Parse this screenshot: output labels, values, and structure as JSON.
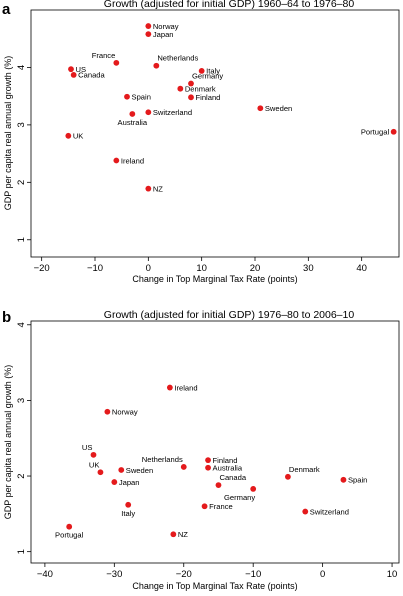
{
  "chart_data": [
    {
      "panel_letter": "a",
      "type": "scatter",
      "title": "Growth (adjusted for initial GDP) 1960–64 to 1976–80",
      "xlabel": "Change in Top Marginal Tax Rate (points)",
      "ylabel": "GDP per capita real annual growth (%)",
      "xlim": [
        -22,
        47
      ],
      "ylim": [
        0.7,
        5.0
      ],
      "xticks": [
        "−20",
        "−10",
        "0",
        "10",
        "20",
        "30",
        "40"
      ],
      "xtick_values": [
        -20,
        -10,
        0,
        10,
        20,
        30,
        40
      ],
      "yticks": [
        "1",
        "2",
        "3",
        "4"
      ],
      "ytick_values": [
        1,
        2,
        3,
        4
      ],
      "marker_color": "#e41a1c",
      "points": [
        {
          "label": "Norway",
          "x": 0,
          "y": 4.72,
          "lpos": "right"
        },
        {
          "label": "Japan",
          "x": 0,
          "y": 4.58,
          "lpos": "right"
        },
        {
          "label": "France",
          "x": -6,
          "y": 4.08,
          "lpos": "above-left"
        },
        {
          "label": "Netherlands",
          "x": 1.5,
          "y": 4.03,
          "lpos": "above-right"
        },
        {
          "label": "US",
          "x": -14.5,
          "y": 3.97,
          "lpos": "right"
        },
        {
          "label": "Canada",
          "x": -14,
          "y": 3.87,
          "lpos": "right"
        },
        {
          "label": "Italy",
          "x": 10,
          "y": 3.94,
          "lpos": "right"
        },
        {
          "label": "Germany",
          "x": 8,
          "y": 3.72,
          "lpos": "above-right"
        },
        {
          "label": "Denmark",
          "x": 6,
          "y": 3.63,
          "lpos": "right"
        },
        {
          "label": "Finland",
          "x": 8,
          "y": 3.48,
          "lpos": "right"
        },
        {
          "label": "Spain",
          "x": -4,
          "y": 3.49,
          "lpos": "right"
        },
        {
          "label": "Sweden",
          "x": 21,
          "y": 3.29,
          "lpos": "right"
        },
        {
          "label": "Switzerland",
          "x": 0,
          "y": 3.22,
          "lpos": "right"
        },
        {
          "label": "Australia",
          "x": -3,
          "y": 3.19,
          "lpos": "below"
        },
        {
          "label": "Portugal",
          "x": 46,
          "y": 2.88,
          "lpos": "left"
        },
        {
          "label": "UK",
          "x": -15,
          "y": 2.81,
          "lpos": "right"
        },
        {
          "label": "Ireland",
          "x": -6,
          "y": 2.38,
          "lpos": "right"
        },
        {
          "label": "NZ",
          "x": 0,
          "y": 1.89,
          "lpos": "right"
        }
      ]
    },
    {
      "panel_letter": "b",
      "type": "scatter",
      "title": "Growth (adjusted for initial GDP) 1976–80 to 2006–10",
      "xlabel": "Change in Top Marginal Tax Rate (points)",
      "ylabel": "GDP per capita real annual growth (%)",
      "xlim": [
        -42,
        11
      ],
      "ylim": [
        0.85,
        4.05
      ],
      "xticks": [
        "−40",
        "−30",
        "−20",
        "−10",
        "0",
        "10"
      ],
      "xtick_values": [
        -40,
        -30,
        -20,
        -10,
        0,
        10
      ],
      "yticks": [
        "1",
        "2",
        "3",
        "4"
      ],
      "ytick_values": [
        1,
        2,
        3,
        4
      ],
      "marker_color": "#e41a1c",
      "points": [
        {
          "label": "Ireland",
          "x": -22,
          "y": 3.17,
          "lpos": "right"
        },
        {
          "label": "Norway",
          "x": -31,
          "y": 2.85,
          "lpos": "right"
        },
        {
          "label": "US",
          "x": -33,
          "y": 2.28,
          "lpos": "above-left"
        },
        {
          "label": "UK",
          "x": -32,
          "y": 2.05,
          "lpos": "above-left"
        },
        {
          "label": "Sweden",
          "x": -29,
          "y": 2.08,
          "lpos": "right"
        },
        {
          "label": "Japan",
          "x": -30,
          "y": 1.92,
          "lpos": "right"
        },
        {
          "label": "Netherlands",
          "x": -20,
          "y": 2.12,
          "lpos": "above-left"
        },
        {
          "label": "Finland",
          "x": -16.5,
          "y": 2.21,
          "lpos": "right"
        },
        {
          "label": "Australia",
          "x": -16.5,
          "y": 2.11,
          "lpos": "right"
        },
        {
          "label": "Canada",
          "x": -15,
          "y": 1.88,
          "lpos": "above-right"
        },
        {
          "label": "Germany",
          "x": -10,
          "y": 1.83,
          "lpos": "below-left"
        },
        {
          "label": "Denmark",
          "x": -5,
          "y": 1.99,
          "lpos": "above-right"
        },
        {
          "label": "Spain",
          "x": 3,
          "y": 1.95,
          "lpos": "right"
        },
        {
          "label": "Italy",
          "x": -28,
          "y": 1.62,
          "lpos": "below"
        },
        {
          "label": "France",
          "x": -17,
          "y": 1.6,
          "lpos": "right"
        },
        {
          "label": "Switzerland",
          "x": -2.5,
          "y": 1.53,
          "lpos": "right"
        },
        {
          "label": "Portugal",
          "x": -36.5,
          "y": 1.33,
          "lpos": "below"
        },
        {
          "label": "NZ",
          "x": -21.5,
          "y": 1.23,
          "lpos": "right"
        }
      ]
    }
  ]
}
